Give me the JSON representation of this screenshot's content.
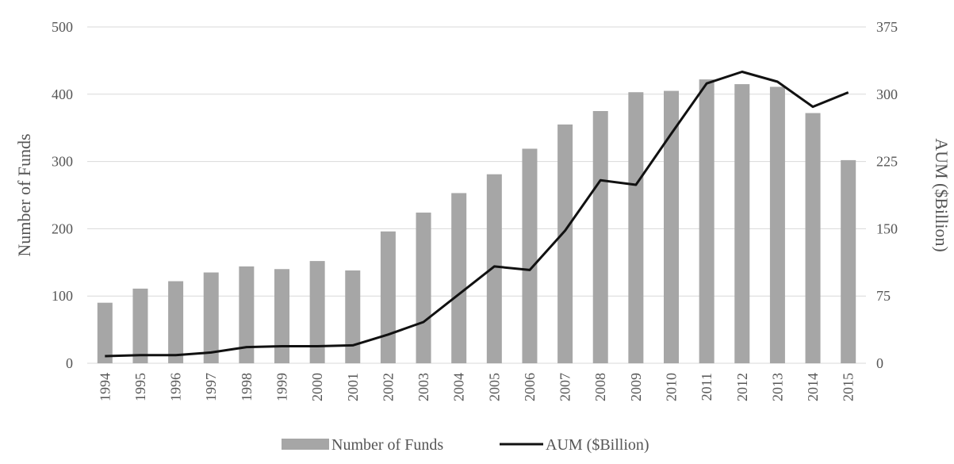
{
  "chart_data": {
    "type": "bar",
    "categories": [
      "1994",
      "1995",
      "1996",
      "1997",
      "1998",
      "1999",
      "2000",
      "2001",
      "2002",
      "2003",
      "2004",
      "2005",
      "2006",
      "2007",
      "2008",
      "2009",
      "2010",
      "2011",
      "2012",
      "2013",
      "2014",
      "2015"
    ],
    "series": [
      {
        "name": "Number of Funds",
        "type": "bar",
        "axis": "left",
        "color": "#a6a6a6",
        "values": [
          90,
          111,
          122,
          135,
          144,
          140,
          152,
          138,
          196,
          224,
          253,
          281,
          319,
          355,
          375,
          403,
          405,
          422,
          415,
          411,
          372,
          302
        ]
      },
      {
        "name": "AUM ($Billion)",
        "type": "line",
        "axis": "right",
        "color": "#111111",
        "values": [
          8,
          9,
          9,
          12,
          18,
          19,
          19,
          20,
          32,
          46,
          77,
          108,
          104,
          148,
          204,
          199,
          256,
          312,
          325,
          314,
          286,
          302
        ]
      }
    ],
    "ylabel": "Number of Funds",
    "y2label": "AUM ($Billion)",
    "ylim": [
      0,
      500
    ],
    "y2lim": [
      0,
      375
    ],
    "yticks": [
      0,
      100,
      200,
      300,
      400,
      500
    ],
    "y2ticks": [
      0,
      75,
      150,
      225,
      300,
      375
    ],
    "legend": [
      "Number of Funds",
      "AUM ($Billion)"
    ],
    "legend_position": "bottom",
    "grid": true
  }
}
